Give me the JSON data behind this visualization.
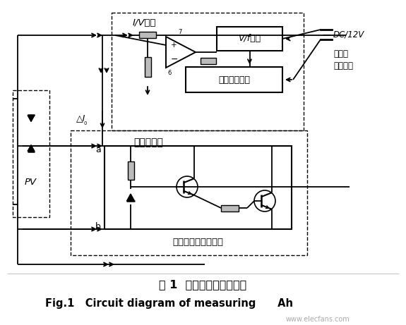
{
  "title_cn": "图 1  直流安时计量配置图",
  "title_en": "Fig.1   Circuit diagram of measuring      Ah",
  "bg_color": "#ffffff",
  "lc": "#000000",
  "label_IV": "I/V转换",
  "label_Vf": "V/f转换",
  "label_display": "数显锁存计量",
  "label_dc_meter": "直流安时计",
  "label_load": "定电压电子模拟负载",
  "label_PV": "PV",
  "label_delta_I": "△I",
  "label_DC": "DC/12V",
  "label_power_1": "安时计",
  "label_power_2": "工作电源",
  "label_a": "a",
  "label_b": "b",
  "watermark": "www.elecfans.com",
  "label_7": "7",
  "label_6": "6",
  "label_plus": "+",
  "label_minus": "−"
}
